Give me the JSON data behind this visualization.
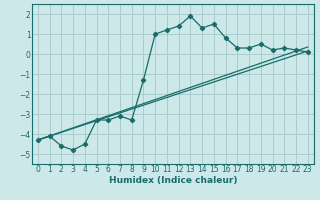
{
  "xlabel": "Humidex (Indice chaleur)",
  "bg_color": "#cce8e8",
  "grid_color": "#aacccc",
  "line_color": "#1a6b6b",
  "xlim": [
    -0.5,
    23.5
  ],
  "ylim": [
    -5.5,
    2.5
  ],
  "xticks": [
    0,
    1,
    2,
    3,
    4,
    5,
    6,
    7,
    8,
    9,
    10,
    11,
    12,
    13,
    14,
    15,
    16,
    17,
    18,
    19,
    20,
    21,
    22,
    23
  ],
  "yticks": [
    -5,
    -4,
    -3,
    -2,
    -1,
    0,
    1,
    2
  ],
  "curve1_x": [
    0,
    1,
    2,
    3,
    4,
    5,
    6,
    7,
    8,
    9,
    10,
    11,
    12,
    13,
    14,
    15,
    16,
    17,
    18,
    19,
    20,
    21,
    22,
    23
  ],
  "curve1_y": [
    -4.3,
    -4.1,
    -4.6,
    -4.8,
    -4.5,
    -3.3,
    -3.3,
    -3.1,
    -3.3,
    -1.3,
    1.0,
    1.2,
    1.4,
    1.9,
    1.3,
    1.5,
    0.8,
    0.3,
    0.3,
    0.5,
    0.2,
    0.3,
    0.2,
    0.1
  ],
  "line2_x": [
    0,
    23
  ],
  "line2_y": [
    -4.3,
    0.15
  ],
  "line3_x": [
    0,
    23
  ],
  "line3_y": [
    -4.3,
    0.35
  ],
  "xlabel_fontsize": 6.5,
  "tick_fontsize": 5.5
}
